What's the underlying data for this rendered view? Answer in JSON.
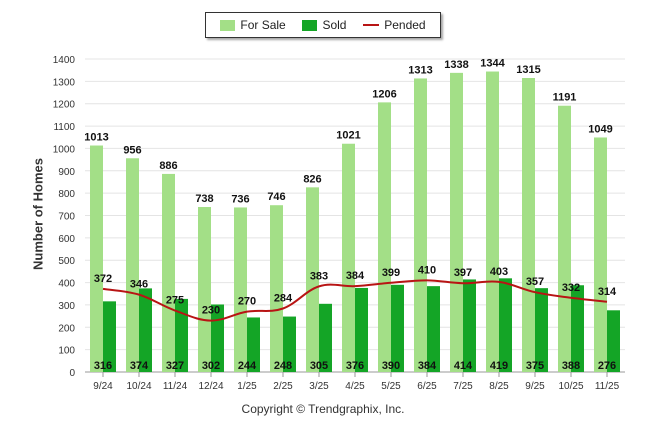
{
  "chart_data": {
    "type": "bar",
    "categories": [
      "9/24",
      "10/24",
      "11/24",
      "12/24",
      "1/25",
      "2/25",
      "3/25",
      "4/25",
      "5/25",
      "6/25",
      "7/25",
      "8/25",
      "9/25",
      "10/25",
      "11/25"
    ],
    "series": [
      {
        "name": "For Sale",
        "type": "bar",
        "color": "#a3df87",
        "values": [
          1013,
          956,
          886,
          738,
          736,
          746,
          826,
          1021,
          1206,
          1313,
          1338,
          1344,
          1315,
          1191,
          1049
        ]
      },
      {
        "name": "Sold",
        "type": "bar",
        "color": "#14a526",
        "values": [
          316,
          374,
          327,
          302,
          244,
          248,
          305,
          376,
          390,
          384,
          414,
          419,
          375,
          388,
          276
        ]
      },
      {
        "name": "Pended",
        "type": "line",
        "color": "#b81414",
        "values": [
          372,
          346,
          275,
          230,
          270,
          284,
          383,
          384,
          399,
          410,
          397,
          403,
          357,
          332,
          314
        ]
      }
    ],
    "ylabel": "Number of Homes",
    "ylim": [
      0,
      1400
    ],
    "yticks": [
      0,
      100,
      200,
      300,
      400,
      500,
      600,
      700,
      800,
      900,
      1000,
      1100,
      1200,
      1300,
      1400
    ],
    "grid": true,
    "legend_position": "top-center"
  },
  "footer": "Copyright © Trendgraphix, Inc."
}
